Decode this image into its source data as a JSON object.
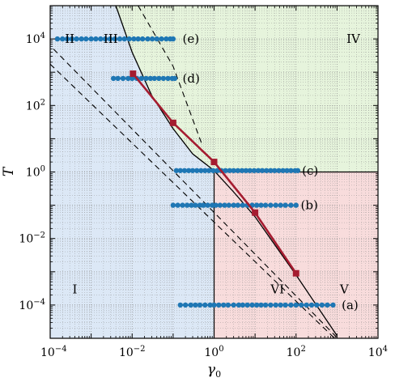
{
  "chart_data": {
    "type": "scatter",
    "xlabel": "γ0",
    "ylabel": "T",
    "xscale": "log",
    "yscale": "log",
    "xlim": [
      0.0001,
      10000
    ],
    "ylim": [
      1e-05,
      100000
    ],
    "grid": true,
    "x_tick_labels": [
      "10^-4",
      "10^-2",
      "10^0",
      "10^2",
      "10^4"
    ],
    "y_tick_labels": [
      "10^-4",
      "10^-2",
      "10^0",
      "10^2",
      "10^4"
    ],
    "regions": [
      {
        "label": "I",
        "color": "#dce8f6",
        "label_at": [
          0.0004,
          0.0003
        ]
      },
      {
        "label": "II",
        "color": "#dce8f6",
        "label_at": [
          0.0003,
          10000
        ]
      },
      {
        "label": "III",
        "color": "#dce8f6",
        "label_at": [
          0.003,
          10000
        ]
      },
      {
        "label": "IV",
        "color": "#e6f4dc",
        "label_at": [
          2500,
          10000
        ]
      },
      {
        "label": "V",
        "color": "#f8dcdc",
        "label_at": [
          1500,
          0.0003
        ]
      },
      {
        "label": "VI",
        "color": "#f8dcdc",
        "label_at": [
          35,
          0.0003
        ]
      }
    ],
    "series": [
      {
        "label": "(a)",
        "color": "#1f77b4",
        "T": 0.0001,
        "label_x": 1300,
        "x": [
          0.15,
          0.2,
          0.27,
          0.35,
          0.45,
          0.6,
          0.8,
          1.0,
          1.3,
          1.7,
          2.2,
          3.0,
          4.0,
          5.0,
          6.5,
          8.5,
          11,
          14,
          18,
          24,
          32,
          42,
          55,
          75,
          100,
          135,
          180,
          240,
          320,
          430,
          580,
          800
        ]
      },
      {
        "label": "(b)",
        "color": "#1f77b4",
        "T": 0.1,
        "label_x": 130,
        "x": [
          0.1,
          0.13,
          0.17,
          0.22,
          0.28,
          0.35,
          0.45,
          0.55,
          0.7,
          0.9,
          1.1,
          1.4,
          1.8,
          2.3,
          3.0,
          3.8,
          5.0,
          6.5,
          8.5,
          11,
          14,
          18,
          24,
          32,
          42,
          55,
          75,
          100
        ]
      },
      {
        "label": "(c)",
        "color": "#1f77b4",
        "T": 1.1,
        "label_x": 140,
        "x": [
          0.12,
          0.15,
          0.19,
          0.24,
          0.3,
          0.38,
          0.48,
          0.6,
          0.75,
          0.95,
          1.2,
          1.5,
          1.9,
          2.4,
          3.0,
          3.8,
          4.8,
          6.0,
          7.5,
          9.5,
          12,
          15,
          19,
          24,
          30,
          38,
          48,
          60,
          75,
          95,
          110
        ]
      },
      {
        "label": "(d)",
        "color": "#1f77b4",
        "T": 650,
        "label_x": 0.17,
        "x": [
          0.0035,
          0.0045,
          0.006,
          0.008,
          0.01,
          0.013,
          0.017,
          0.022,
          0.028,
          0.035,
          0.045,
          0.058,
          0.075,
          0.095,
          0.11
        ]
      },
      {
        "label": "(e)",
        "color": "#1f77b4",
        "T": 10000,
        "label_x": 0.17,
        "x": [
          0.00015,
          0.0002,
          0.00026,
          0.00034,
          0.00044,
          0.00058,
          0.00075,
          0.001,
          0.0013,
          0.0017,
          0.0022,
          0.0029,
          0.0038,
          0.005,
          0.0065,
          0.0085,
          0.011,
          0.014,
          0.018,
          0.024,
          0.031,
          0.04,
          0.052,
          0.068,
          0.085,
          0.1
        ]
      }
    ],
    "red_markers": {
      "color": "#a51c30",
      "x": [
        0.0105,
        0.1,
        1.0,
        10,
        100
      ],
      "y": [
        900,
        30,
        2.0,
        0.06,
        0.0009
      ]
    },
    "solid_curve": {
      "color": "#000000",
      "x": [
        0.004,
        0.01,
        0.03,
        0.1,
        0.3,
        1,
        3,
        10,
        100,
        1000
      ],
      "y": [
        100000,
        4000,
        200,
        20,
        3.5,
        1.1,
        0.25,
        0.045,
        0.0008,
        1.2e-05
      ]
    },
    "dashed_lines": [
      {
        "x": [
          0.00012,
          1000
        ],
        "y": [
          5000,
          1.05e-05
        ]
      },
      {
        "x": [
          0.0001,
          1000
        ],
        "y": [
          1750,
          8.5e-06
        ]
      },
      {
        "x": [
          0.014,
          0.1,
          0.5
        ],
        "y": [
          100000,
          1500,
          7
        ]
      }
    ]
  }
}
